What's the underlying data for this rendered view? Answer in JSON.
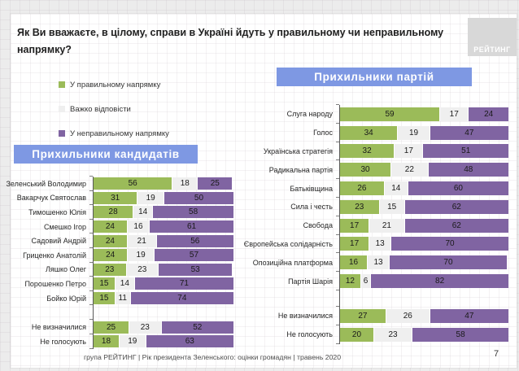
{
  "slide": {
    "title": "Як Ви вважаєте, в цілому, справи в Україні йдуть у правильному чи неправильному напрямку?",
    "logo_text": "РЕЙТИНГ",
    "footer": "група РЕЙТИНГ |  Рік президента Зеленського: оцінки громадян | травень 2020",
    "page_number": "7"
  },
  "colors": {
    "right_direction": "#9bbb59",
    "hard_to_say": "#efefef",
    "wrong_direction": "#8064a2",
    "banner_blue": "#7e98e3",
    "logo_gray": "#d8d8d8"
  },
  "legend": {
    "items": [
      {
        "label": "У правильному напрямку",
        "color": "#9bbb59"
      },
      {
        "label": "Важко відповісти",
        "color": "#efefef"
      },
      {
        "label": "У неправильному напрямку",
        "color": "#8064a2"
      }
    ]
  },
  "chart_data": [
    {
      "type": "bar",
      "orientation": "horizontal",
      "stacked": true,
      "title": "Прихильники кандидатів",
      "xlim": [
        0,
        100
      ],
      "grid": false,
      "legend_position": "top-left-shared",
      "group_break_before_index": 9,
      "categories": [
        "Зеленський Володимир",
        "Вакарчук Святослав",
        "Тимошенко Юлія",
        "Смешко Ігор",
        "Садовий Андрій",
        "Гриценко Анатолій",
        "Ляшко Олег",
        "Порошенко Петро",
        "Бойко Юрій",
        "Не визначилися",
        "Не голосують"
      ],
      "series": [
        {
          "name": "У правильному напрямку",
          "color": "#9bbb59",
          "values": [
            56,
            31,
            28,
            24,
            24,
            24,
            23,
            15,
            15,
            25,
            18
          ]
        },
        {
          "name": "Важко відповісти",
          "color": "#efefef",
          "values": [
            18,
            19,
            14,
            16,
            21,
            19,
            23,
            14,
            11,
            23,
            19
          ]
        },
        {
          "name": "У неправильному напрямку",
          "color": "#8064a2",
          "values": [
            25,
            50,
            58,
            61,
            56,
            57,
            53,
            71,
            74,
            52,
            63
          ]
        }
      ]
    },
    {
      "type": "bar",
      "orientation": "horizontal",
      "stacked": true,
      "title": "Прихильники партій",
      "xlim": [
        0,
        100
      ],
      "grid": false,
      "legend_position": "top-left-shared",
      "group_break_before_index": 10,
      "categories": [
        "Слуга народу",
        "Голос",
        "Українська стратегія",
        "Радикальна партія",
        "Батьківщина",
        "Сила і честь",
        "Свобода",
        "Європейська солідарність",
        "Опозиційна платформа",
        "Партія Шарія",
        "Не визначилися",
        "Не голосують"
      ],
      "series": [
        {
          "name": "У правильному напрямку",
          "color": "#9bbb59",
          "values": [
            59,
            34,
            32,
            30,
            26,
            23,
            17,
            17,
            16,
            12,
            27,
            20
          ]
        },
        {
          "name": "Важко відповісти",
          "color": "#efefef",
          "values": [
            17,
            19,
            17,
            22,
            14,
            15,
            21,
            13,
            13,
            6,
            26,
            23
          ]
        },
        {
          "name": "У неправильному напрямку",
          "color": "#8064a2",
          "values": [
            24,
            47,
            51,
            48,
            60,
            62,
            62,
            70,
            70,
            82,
            47,
            58
          ]
        }
      ]
    }
  ]
}
